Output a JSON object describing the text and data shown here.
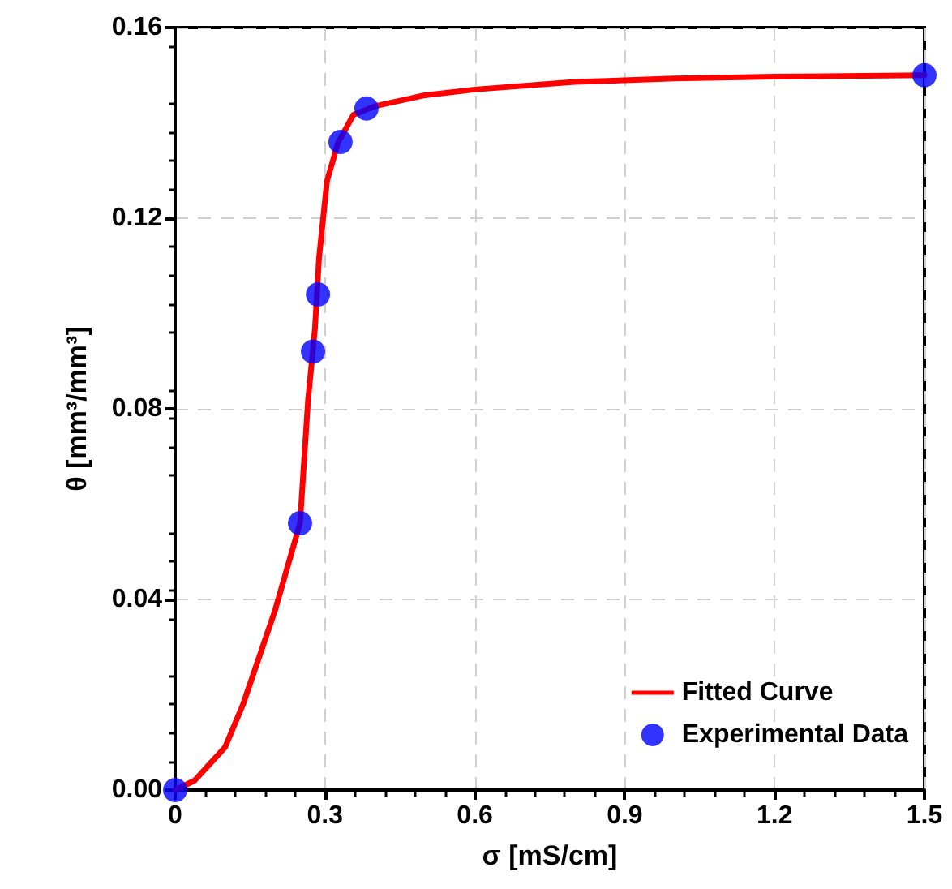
{
  "chart_data": {
    "type": "scatter",
    "xlabel": "σ [mS/cm]",
    "ylabel": "θ [mm³/mm³]",
    "xlim": [
      0,
      1.5
    ],
    "xticks": [
      0,
      0.3,
      0.6,
      0.9,
      1.2,
      1.5
    ],
    "ylim": [
      0,
      0.16
    ],
    "yticks": [
      {
        "value": 0,
        "label": "0.00"
      },
      {
        "value": 0.04,
        "label": "0.04"
      },
      {
        "value": 0.08,
        "label": "0.08"
      },
      {
        "value": 0.12,
        "label": "0.12"
      },
      {
        "value": 0.16,
        "label": "0.16"
      }
    ],
    "grid": true,
    "legend": "bottom right",
    "series": [
      {
        "name": "Fitted Curve",
        "type": "line",
        "color": "#ff0000",
        "marker": "none",
        "line_style": "solid",
        "x": [
          0,
          0.039,
          0.1,
          0.136,
          0.2,
          0.25,
          0.266,
          0.28,
          0.288,
          0.304,
          0.326,
          0.357,
          0.4,
          0.5,
          0.6,
          0.8,
          1.0,
          1.2,
          1.5
        ],
        "values": [
          0,
          0.002,
          0.009,
          0.018,
          0.0377,
          0.056,
          0.0817,
          0.097,
          0.1116,
          0.1278,
          0.1358,
          0.1417,
          0.1435,
          0.1458,
          0.147,
          0.1486,
          0.1493,
          0.1497,
          0.15
        ]
      },
      {
        "name": "Experimental Data",
        "color": "#0000ff",
        "marker": "circle",
        "x": [
          0,
          0.25,
          0.276,
          0.286,
          0.331,
          0.383,
          1.5
        ],
        "values": [
          0,
          0.056,
          0.092,
          0.104,
          0.136,
          0.143,
          0.15
        ]
      }
    ]
  }
}
